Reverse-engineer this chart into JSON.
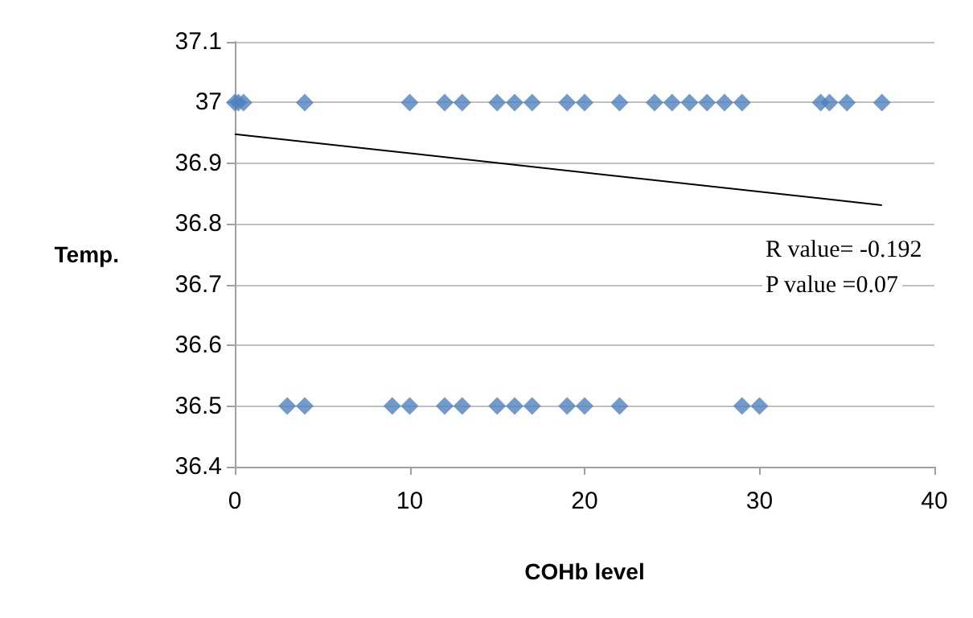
{
  "chart_data": {
    "type": "scatter",
    "xlabel": "COHb level",
    "ylabel": "Temp.",
    "xlim": [
      0,
      40
    ],
    "xticks": [
      0,
      10,
      20,
      30,
      40
    ],
    "ylim": [
      36.4,
      37.1
    ],
    "yticks": [
      36.4,
      36.5,
      36.6,
      36.7,
      36.8,
      36.9,
      37,
      37.1
    ],
    "grid": "y",
    "marker": "diamond",
    "series": [
      {
        "color": "#4f81bd",
        "x": [
          0,
          0.2,
          0.5,
          4,
          10,
          12,
          13,
          15,
          16,
          17,
          19,
          20,
          22,
          24,
          25,
          26,
          27,
          28,
          29,
          33.5,
          34,
          35,
          37,
          3,
          4,
          9,
          10,
          12,
          13,
          15,
          16,
          17,
          19,
          20,
          22,
          29,
          30
        ],
        "values": [
          37,
          37,
          37,
          37,
          37,
          37,
          37,
          37,
          37,
          37,
          37,
          37,
          37,
          37,
          37,
          37,
          37,
          37,
          37,
          37,
          37,
          37,
          37,
          36.5,
          36.5,
          36.5,
          36.5,
          36.5,
          36.5,
          36.5,
          36.5,
          36.5,
          36.5,
          36.5,
          36.5,
          36.5,
          36.5
        ]
      },
      {
        "type": "line",
        "color": "#000000",
        "marker": "none",
        "x": [
          0,
          37
        ],
        "values": [
          36.948,
          36.831
        ]
      }
    ],
    "annotations": [
      "R value= -0.192",
      "P value =0.07"
    ]
  }
}
